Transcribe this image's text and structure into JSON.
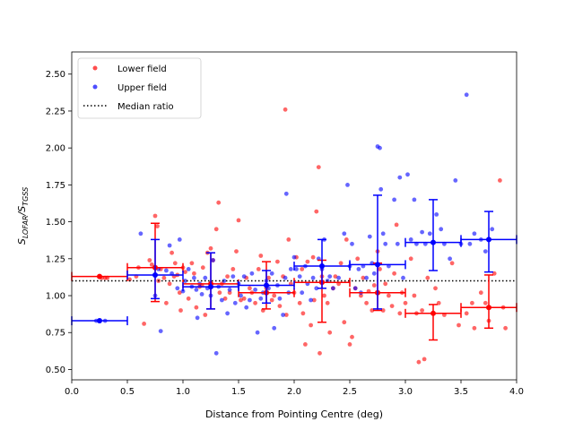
{
  "chart_data": {
    "type": "scatter",
    "xlabel": "Distance from Pointing Centre (deg)",
    "ylabel_main": "S",
    "ylabel_sub1": "LOFAR",
    "ylabel_sub2": "TGSS",
    "xlim": [
      0.0,
      4.0
    ],
    "ylim": [
      0.43,
      2.65
    ],
    "xticks": [
      0.0,
      0.5,
      1.0,
      1.5,
      2.0,
      2.5,
      3.0,
      3.5,
      4.0
    ],
    "xtick_labels": [
      "0.0",
      "0.5",
      "1.0",
      "1.5",
      "2.0",
      "2.5",
      "3.0",
      "3.5",
      "4.0"
    ],
    "yticks": [
      0.5,
      0.75,
      1.0,
      1.25,
      1.5,
      1.75,
      2.0,
      2.25,
      2.5
    ],
    "ytick_labels": [
      "0.50",
      "0.75",
      "1.00",
      "1.25",
      "1.50",
      "1.75",
      "2.00",
      "2.25",
      "2.50"
    ],
    "median_ratio": 1.1,
    "legend": {
      "position": "top-left",
      "entries": [
        {
          "label": "Lower field",
          "color": "#ff4d4d"
        },
        {
          "label": "Upper field",
          "color": "#4d4dff"
        },
        {
          "label": "Median ratio",
          "color": "#000000"
        }
      ]
    },
    "series": [
      {
        "name": "Lower field",
        "color": "#ff0000",
        "points": [
          [
            0.27,
            1.12
          ],
          [
            0.3,
            1.12
          ],
          [
            0.32,
            1.12
          ],
          [
            0.52,
            1.11
          ],
          [
            0.58,
            1.13
          ],
          [
            0.6,
            1.19
          ],
          [
            0.65,
            0.81
          ],
          [
            0.7,
            1.24
          ],
          [
            0.72,
            1.21
          ],
          [
            0.75,
            1.54
          ],
          [
            0.77,
            1.47
          ],
          [
            0.78,
            1.1
          ],
          [
            0.8,
            1.18
          ],
          [
            0.83,
            1.12
          ],
          [
            0.85,
            0.95
          ],
          [
            0.88,
            1.08
          ],
          [
            0.9,
            1.29
          ],
          [
            0.92,
            1.13
          ],
          [
            0.93,
            1.22
          ],
          [
            0.95,
            1.14
          ],
          [
            0.97,
            1.02
          ],
          [
            0.98,
            0.9
          ],
          [
            1.0,
            1.19
          ],
          [
            1.02,
            1.16
          ],
          [
            1.05,
            0.98
          ],
          [
            1.08,
            1.22
          ],
          [
            1.1,
            1.15
          ],
          [
            1.12,
            0.92
          ],
          [
            1.15,
            1.06
          ],
          [
            1.17,
            1.07
          ],
          [
            1.18,
            1.19
          ],
          [
            1.2,
            0.87
          ],
          [
            1.22,
            1.29
          ],
          [
            1.25,
            1.32
          ],
          [
            1.27,
            1.24
          ],
          [
            1.3,
            1.45
          ],
          [
            1.32,
            1.63
          ],
          [
            1.33,
            1.02
          ],
          [
            1.35,
            1.08
          ],
          [
            1.38,
            0.98
          ],
          [
            1.4,
            1.13
          ],
          [
            1.42,
            1.02
          ],
          [
            1.45,
            1.18
          ],
          [
            1.48,
            1.3
          ],
          [
            1.5,
            1.51
          ],
          [
            1.52,
            0.97
          ],
          [
            1.55,
            0.98
          ],
          [
            1.57,
            1.12
          ],
          [
            1.6,
            1.05
          ],
          [
            1.62,
            1.02
          ],
          [
            1.65,
            0.95
          ],
          [
            1.68,
            1.18
          ],
          [
            1.7,
            1.27
          ],
          [
            1.72,
            0.9
          ],
          [
            1.75,
            1.05
          ],
          [
            1.77,
            1.12
          ],
          [
            1.8,
            0.97
          ],
          [
            1.82,
            1.0
          ],
          [
            1.85,
            1.23
          ],
          [
            1.87,
            0.93
          ],
          [
            1.9,
            1.13
          ],
          [
            1.92,
            2.26
          ],
          [
            1.93,
            0.87
          ],
          [
            1.95,
            1.38
          ],
          [
            1.97,
            1.08
          ],
          [
            2.0,
            1.02
          ],
          [
            2.02,
            1.26
          ],
          [
            2.05,
            0.95
          ],
          [
            2.07,
            1.18
          ],
          [
            2.08,
            0.88
          ],
          [
            2.1,
            0.67
          ],
          [
            2.12,
            1.23
          ],
          [
            2.15,
            0.8
          ],
          [
            2.17,
            1.26
          ],
          [
            2.18,
            0.97
          ],
          [
            2.2,
            1.57
          ],
          [
            2.22,
            1.87
          ],
          [
            2.23,
            0.61
          ],
          [
            2.25,
            1.13
          ],
          [
            2.27,
            1.0
          ],
          [
            2.3,
            0.95
          ],
          [
            2.32,
            0.75
          ],
          [
            2.35,
            1.05
          ],
          [
            2.37,
            1.13
          ],
          [
            2.4,
            1.08
          ],
          [
            2.42,
            1.22
          ],
          [
            2.45,
            0.82
          ],
          [
            2.47,
            1.38
          ],
          [
            2.5,
            0.67
          ],
          [
            2.52,
            0.72
          ],
          [
            2.55,
            1.05
          ],
          [
            2.57,
            1.25
          ],
          [
            2.6,
            1.0
          ],
          [
            2.62,
            1.12
          ],
          [
            2.65,
            0.95
          ],
          [
            2.67,
            1.03
          ],
          [
            2.7,
            0.9
          ],
          [
            2.72,
            1.07
          ],
          [
            2.75,
            1.3
          ],
          [
            2.77,
            1.18
          ],
          [
            2.8,
            0.9
          ],
          [
            2.82,
            1.08
          ],
          [
            2.85,
            1.0
          ],
          [
            2.88,
            0.93
          ],
          [
            2.9,
            1.15
          ],
          [
            2.92,
            1.48
          ],
          [
            2.95,
            0.88
          ],
          [
            2.97,
            1.02
          ],
          [
            3.0,
            0.95
          ],
          [
            3.05,
            1.25
          ],
          [
            3.08,
            1.0
          ],
          [
            3.1,
            0.88
          ],
          [
            3.12,
            0.55
          ],
          [
            3.15,
            0.9
          ],
          [
            3.17,
            0.57
          ],
          [
            3.2,
            1.12
          ],
          [
            3.25,
            0.88
          ],
          [
            3.27,
            1.05
          ],
          [
            3.3,
            0.95
          ],
          [
            3.35,
            0.87
          ],
          [
            3.42,
            1.22
          ],
          [
            3.48,
            0.8
          ],
          [
            3.55,
            0.88
          ],
          [
            3.6,
            0.95
          ],
          [
            3.62,
            0.78
          ],
          [
            3.68,
            1.02
          ],
          [
            3.72,
            0.95
          ],
          [
            3.75,
            0.83
          ],
          [
            3.8,
            1.15
          ],
          [
            3.85,
            1.78
          ],
          [
            3.88,
            0.92
          ],
          [
            3.9,
            0.78
          ]
        ],
        "binned": [
          {
            "x": 0.25,
            "y": 1.13,
            "xerr": 0.25,
            "yerr_low": 0.0,
            "yerr_high": 0.0
          },
          {
            "x": 0.75,
            "y": 1.19,
            "xerr": 0.25,
            "yerr_low": 0.23,
            "yerr_high": 0.3
          },
          {
            "x": 1.25,
            "y": 1.08,
            "xerr": 0.25,
            "yerr_low": 0.17,
            "yerr_high": 0.21
          },
          {
            "x": 1.75,
            "y": 1.02,
            "xerr": 0.25,
            "yerr_low": 0.11,
            "yerr_high": 0.21
          },
          {
            "x": 2.25,
            "y": 1.09,
            "xerr": 0.25,
            "yerr_low": 0.27,
            "yerr_high": 0.15
          },
          {
            "x": 2.75,
            "y": 1.02,
            "xerr": 0.25,
            "yerr_low": 0.12,
            "yerr_high": 0.2
          },
          {
            "x": 3.25,
            "y": 0.88,
            "xerr": 0.25,
            "yerr_low": 0.18,
            "yerr_high": 0.06
          },
          {
            "x": 3.75,
            "y": 0.92,
            "xerr": 0.25,
            "yerr_low": 0.14,
            "yerr_high": 0.22
          }
        ]
      },
      {
        "name": "Upper field",
        "color": "#0000ff",
        "points": [
          [
            0.22,
            0.83
          ],
          [
            0.25,
            0.83
          ],
          [
            0.3,
            0.83
          ],
          [
            0.62,
            1.42
          ],
          [
            0.75,
            1.0
          ],
          [
            0.78,
            1.18
          ],
          [
            0.8,
            0.76
          ],
          [
            0.85,
            1.17
          ],
          [
            0.88,
            1.34
          ],
          [
            0.9,
            1.15
          ],
          [
            0.95,
            1.05
          ],
          [
            0.97,
            1.38
          ],
          [
            1.0,
            1.03
          ],
          [
            1.02,
            1.1
          ],
          [
            1.05,
            1.18
          ],
          [
            1.08,
            1.06
          ],
          [
            1.1,
            1.12
          ],
          [
            1.12,
            1.04
          ],
          [
            1.13,
            0.85
          ],
          [
            1.15,
            1.08
          ],
          [
            1.17,
            1.01
          ],
          [
            1.2,
            1.12
          ],
          [
            1.22,
            1.05
          ],
          [
            1.25,
            1.0
          ],
          [
            1.27,
            1.24
          ],
          [
            1.3,
            0.61
          ],
          [
            1.32,
            1.06
          ],
          [
            1.35,
            0.97
          ],
          [
            1.37,
            1.1
          ],
          [
            1.4,
            0.88
          ],
          [
            1.42,
            1.04
          ],
          [
            1.45,
            1.13
          ],
          [
            1.47,
            0.95
          ],
          [
            1.5,
            1.08
          ],
          [
            1.52,
            1.0
          ],
          [
            1.55,
            1.13
          ],
          [
            1.57,
            0.92
          ],
          [
            1.6,
            0.97
          ],
          [
            1.62,
            1.15
          ],
          [
            1.65,
            1.04
          ],
          [
            1.67,
            0.75
          ],
          [
            1.7,
            0.98
          ],
          [
            1.72,
            1.02
          ],
          [
            1.75,
            1.1
          ],
          [
            1.77,
            1.05
          ],
          [
            1.8,
            1.15
          ],
          [
            1.82,
            0.78
          ],
          [
            1.85,
            1.07
          ],
          [
            1.87,
            0.98
          ],
          [
            1.9,
            0.87
          ],
          [
            1.92,
            1.12
          ],
          [
            1.93,
            1.69
          ],
          [
            1.95,
            1.02
          ],
          [
            1.97,
            1.18
          ],
          [
            2.0,
            1.26
          ],
          [
            2.02,
            1.18
          ],
          [
            2.05,
            1.13
          ],
          [
            2.07,
            1.02
          ],
          [
            2.1,
            1.2
          ],
          [
            2.12,
            1.08
          ],
          [
            2.15,
            0.97
          ],
          [
            2.17,
            1.12
          ],
          [
            2.2,
            1.05
          ],
          [
            2.22,
            1.25
          ],
          [
            2.25,
            1.18
          ],
          [
            2.27,
            1.38
          ],
          [
            2.3,
            1.1
          ],
          [
            2.32,
            1.13
          ],
          [
            2.35,
            1.05
          ],
          [
            2.4,
            1.12
          ],
          [
            2.45,
            1.42
          ],
          [
            2.48,
            1.75
          ],
          [
            2.5,
            1.2
          ],
          [
            2.52,
            1.35
          ],
          [
            2.55,
            1.05
          ],
          [
            2.58,
            1.18
          ],
          [
            2.6,
            1.02
          ],
          [
            2.62,
            1.2
          ],
          [
            2.65,
            1.12
          ],
          [
            2.68,
            1.4
          ],
          [
            2.7,
            1.22
          ],
          [
            2.72,
            1.15
          ],
          [
            2.75,
            2.01
          ],
          [
            2.77,
            2.0
          ],
          [
            2.78,
            1.72
          ],
          [
            2.8,
            1.42
          ],
          [
            2.82,
            1.35
          ],
          [
            2.85,
            1.2
          ],
          [
            2.9,
            1.65
          ],
          [
            2.93,
            1.35
          ],
          [
            2.95,
            1.8
          ],
          [
            2.98,
            1.12
          ],
          [
            3.02,
            1.82
          ],
          [
            3.05,
            1.38
          ],
          [
            3.08,
            1.65
          ],
          [
            3.1,
            1.35
          ],
          [
            3.15,
            1.43
          ],
          [
            3.18,
            1.35
          ],
          [
            3.22,
            1.42
          ],
          [
            3.28,
            1.55
          ],
          [
            3.32,
            1.45
          ],
          [
            3.35,
            1.35
          ],
          [
            3.4,
            1.25
          ],
          [
            3.45,
            1.78
          ],
          [
            3.5,
            1.35
          ],
          [
            3.55,
            2.36
          ],
          [
            3.58,
            1.35
          ],
          [
            3.62,
            1.42
          ],
          [
            3.68,
            1.38
          ],
          [
            3.72,
            1.3
          ],
          [
            3.78,
            1.45
          ]
        ],
        "binned": [
          {
            "x": 0.25,
            "y": 0.83,
            "xerr": 0.25,
            "yerr_low": 0.0,
            "yerr_high": 0.0
          },
          {
            "x": 0.75,
            "y": 1.14,
            "xerr": 0.25,
            "yerr_low": 0.16,
            "yerr_high": 0.24
          },
          {
            "x": 1.25,
            "y": 1.06,
            "xerr": 0.25,
            "yerr_low": 0.15,
            "yerr_high": 0.23
          },
          {
            "x": 1.75,
            "y": 1.07,
            "xerr": 0.25,
            "yerr_low": 0.12,
            "yerr_high": 0.1
          },
          {
            "x": 2.25,
            "y": 1.2,
            "xerr": 0.25,
            "yerr_low": 0.15,
            "yerr_high": 0.18
          },
          {
            "x": 2.75,
            "y": 1.21,
            "xerr": 0.25,
            "yerr_low": 0.3,
            "yerr_high": 0.47
          },
          {
            "x": 3.25,
            "y": 1.36,
            "xerr": 0.25,
            "yerr_low": 0.19,
            "yerr_high": 0.29
          },
          {
            "x": 3.75,
            "y": 1.38,
            "xerr": 0.25,
            "yerr_low": 0.22,
            "yerr_high": 0.19
          }
        ]
      }
    ]
  }
}
